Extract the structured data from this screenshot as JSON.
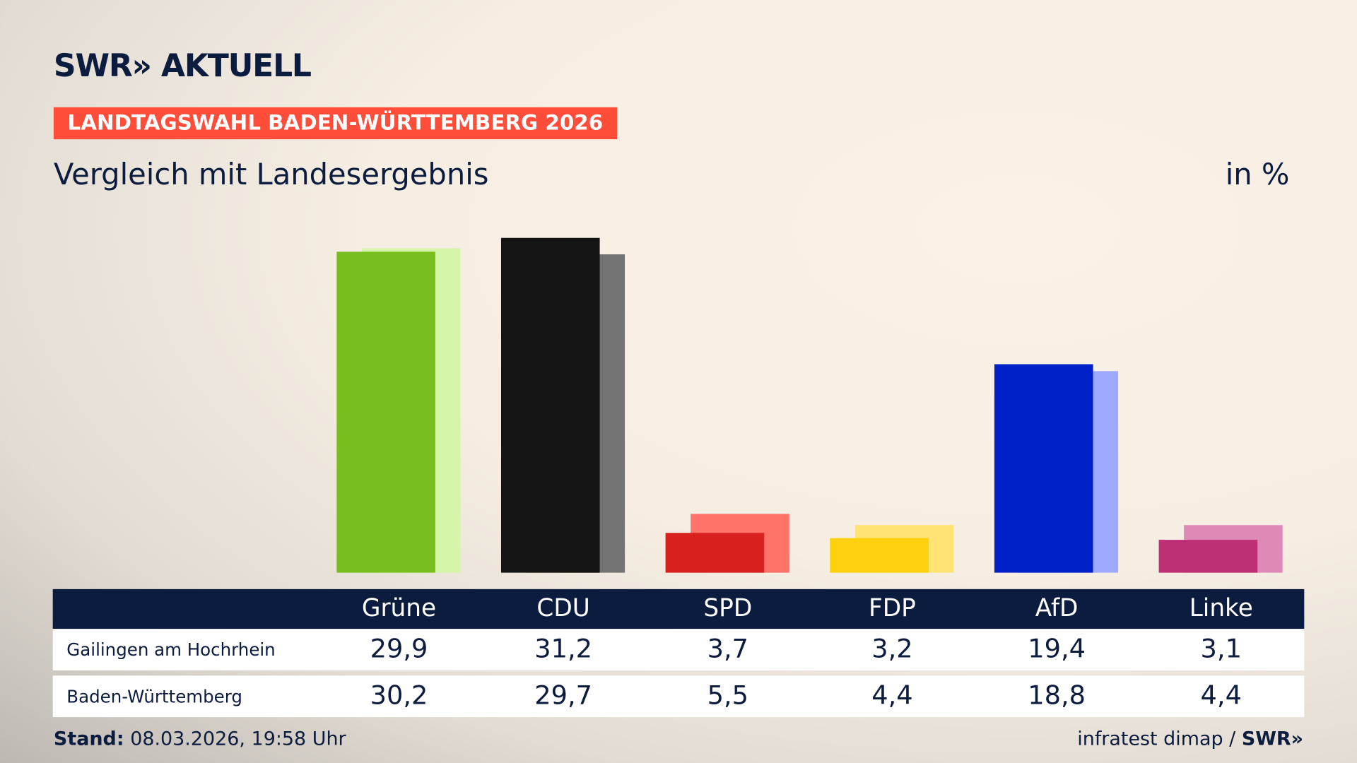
{
  "header": {
    "logo": "SWR» AKTUELL",
    "badge": "LANDTAGSWAHL BADEN-WÜRTTEMBERG 2026",
    "subtitle": "Vergleich mit Landesergebnis",
    "unit": "in %"
  },
  "chart_data": {
    "type": "bar",
    "categories": [
      "Grüne",
      "CDU",
      "SPD",
      "FDP",
      "AfD",
      "Linke"
    ],
    "series": [
      {
        "name": "Gailingen am Hochrhein",
        "values": [
          29.9,
          31.2,
          3.7,
          3.2,
          19.4,
          3.1
        ],
        "labels": [
          "29,9",
          "31,2",
          "3,7",
          "3,2",
          "19,4",
          "3,1"
        ]
      },
      {
        "name": "Baden-Württemberg",
        "values": [
          30.2,
          29.7,
          5.5,
          4.4,
          18.8,
          4.4
        ],
        "labels": [
          "30,2",
          "29,7",
          "5,5",
          "4,4",
          "18,8",
          "4,4"
        ]
      }
    ],
    "colors": {
      "primary": [
        "#78be1e",
        "#141414",
        "#d8201e",
        "#ffd00d",
        "#0021c8",
        "#be3075"
      ],
      "secondary": [
        "#d6f5a8",
        "#737373",
        "#ff7369",
        "#ffe474",
        "#9eaaff",
        "#de8ab6"
      ]
    },
    "ylim": [
      0,
      31.2
    ],
    "grid": false
  },
  "footer": {
    "stand_label": "Stand:",
    "stand_value": "08.03.2026, 19:58 Uhr",
    "source": "infratest dimap / ",
    "source_logo": "SWR»"
  }
}
